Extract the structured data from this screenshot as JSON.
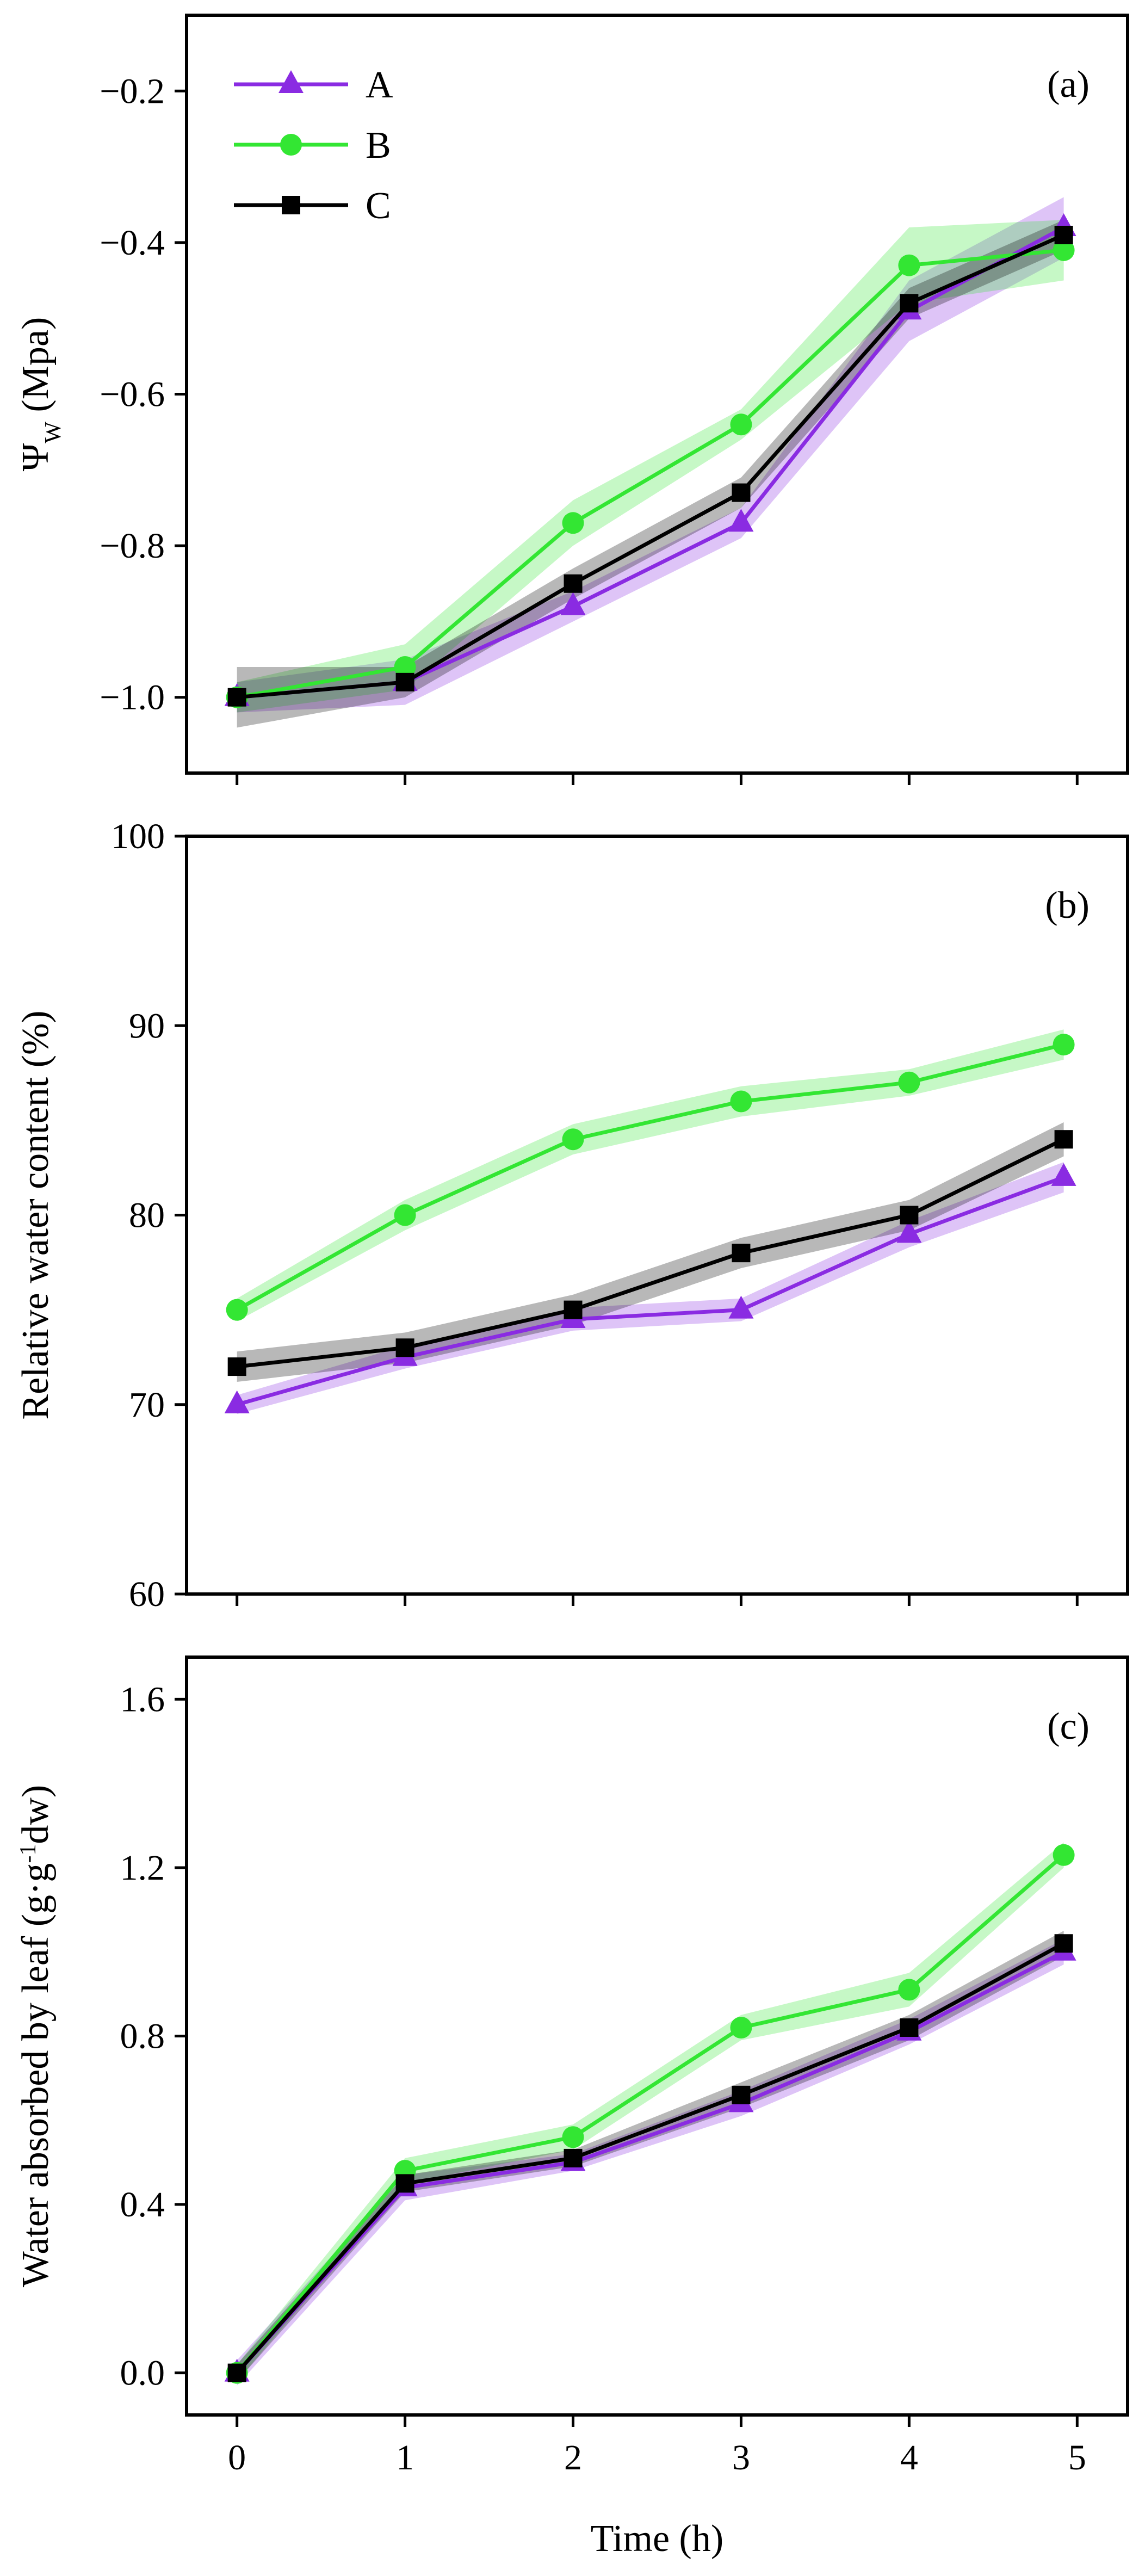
{
  "chart_data": [
    {
      "type": "line",
      "panel_label": "(a)",
      "ylabel_main": "Ψ",
      "ylabel_sub": "W",
      "ylabel_rest": " (Mpa)",
      "xlabel": "",
      "ylim": [
        -1.1,
        -0.1
      ],
      "yticks": [
        -1.0,
        -0.8,
        -0.6,
        -0.4,
        -0.2
      ],
      "ytick_labels": [
        "−1.0",
        "−0.8",
        "−0.6",
        "−0.4",
        "−0.2"
      ],
      "x": [
        0,
        1,
        2,
        3,
        4,
        4.92
      ],
      "legend": {
        "position": "top-left",
        "entries": [
          "A",
          "B",
          "C"
        ]
      },
      "series": [
        {
          "name": "A",
          "values": [
            -1.0,
            -0.98,
            -0.88,
            -0.77,
            -0.49,
            -0.38
          ],
          "band": [
            0.02,
            0.03,
            0.02,
            0.02,
            0.04,
            0.04
          ]
        },
        {
          "name": "B",
          "values": [
            -1.0,
            -0.96,
            -0.77,
            -0.64,
            -0.43,
            -0.41
          ],
          "band": [
            0.02,
            0.03,
            0.03,
            0.02,
            0.05,
            0.04
          ]
        },
        {
          "name": "C",
          "values": [
            -1.0,
            -0.98,
            -0.85,
            -0.73,
            -0.48,
            -0.39
          ],
          "band": [
            0.04,
            0.02,
            0.02,
            0.02,
            0.02,
            0.02
          ]
        }
      ]
    },
    {
      "type": "line",
      "panel_label": "(b)",
      "ylabel_main": "Relative water content (%)",
      "xlabel": "",
      "ylim": [
        60,
        100
      ],
      "yticks": [
        60,
        70,
        80,
        90,
        100
      ],
      "ytick_labels": [
        "60",
        "70",
        "80",
        "90",
        "100"
      ],
      "x": [
        0,
        1,
        2,
        3,
        4,
        4.92
      ],
      "series": [
        {
          "name": "A",
          "values": [
            70,
            72.5,
            74.5,
            75,
            79,
            82
          ],
          "band": [
            0.5,
            0.6,
            0.6,
            0.6,
            0.7,
            0.8
          ]
        },
        {
          "name": "B",
          "values": [
            75,
            80,
            84,
            86,
            87,
            89
          ],
          "band": [
            0.6,
            0.8,
            0.8,
            0.8,
            0.7,
            0.8
          ]
        },
        {
          "name": "C",
          "values": [
            72,
            73,
            75,
            78,
            80,
            84
          ],
          "band": [
            0.8,
            0.8,
            0.8,
            0.8,
            0.8,
            0.9
          ]
        }
      ]
    },
    {
      "type": "line",
      "panel_label": "(c)",
      "ylabel_main": "Water absorbed by leaf (g·g",
      "ylabel_sup": "-1",
      "ylabel_rest": "dw)",
      "xlabel": "Time (h)",
      "ylim": [
        -0.1,
        1.7
      ],
      "yticks": [
        0.0,
        0.4,
        0.8,
        1.2,
        1.6
      ],
      "ytick_labels": [
        "0.0",
        "0.4",
        "0.8",
        "1.2",
        "1.6"
      ],
      "xticks": [
        0,
        1,
        2,
        3,
        4,
        5
      ],
      "xtick_labels": [
        "0",
        "1",
        "2",
        "3",
        "4",
        "5"
      ],
      "x": [
        0,
        1,
        2,
        3,
        4,
        4.92
      ],
      "series": [
        {
          "name": "A",
          "values": [
            0.0,
            0.44,
            0.5,
            0.64,
            0.81,
            1.0
          ],
          "band": [
            0.03,
            0.03,
            0.02,
            0.03,
            0.03,
            0.03
          ]
        },
        {
          "name": "B",
          "values": [
            0.0,
            0.48,
            0.56,
            0.82,
            0.91,
            1.23
          ],
          "band": [
            0.02,
            0.03,
            0.03,
            0.03,
            0.04,
            0.03
          ]
        },
        {
          "name": "C",
          "values": [
            0.0,
            0.45,
            0.51,
            0.66,
            0.82,
            1.02
          ],
          "band": [
            0.02,
            0.02,
            0.02,
            0.03,
            0.03,
            0.03
          ]
        }
      ]
    }
  ],
  "colors": {
    "A": "#8a2be2",
    "B": "#33e633",
    "C": "#000000"
  },
  "markers": {
    "A": "triangle",
    "B": "circle",
    "C": "square"
  }
}
